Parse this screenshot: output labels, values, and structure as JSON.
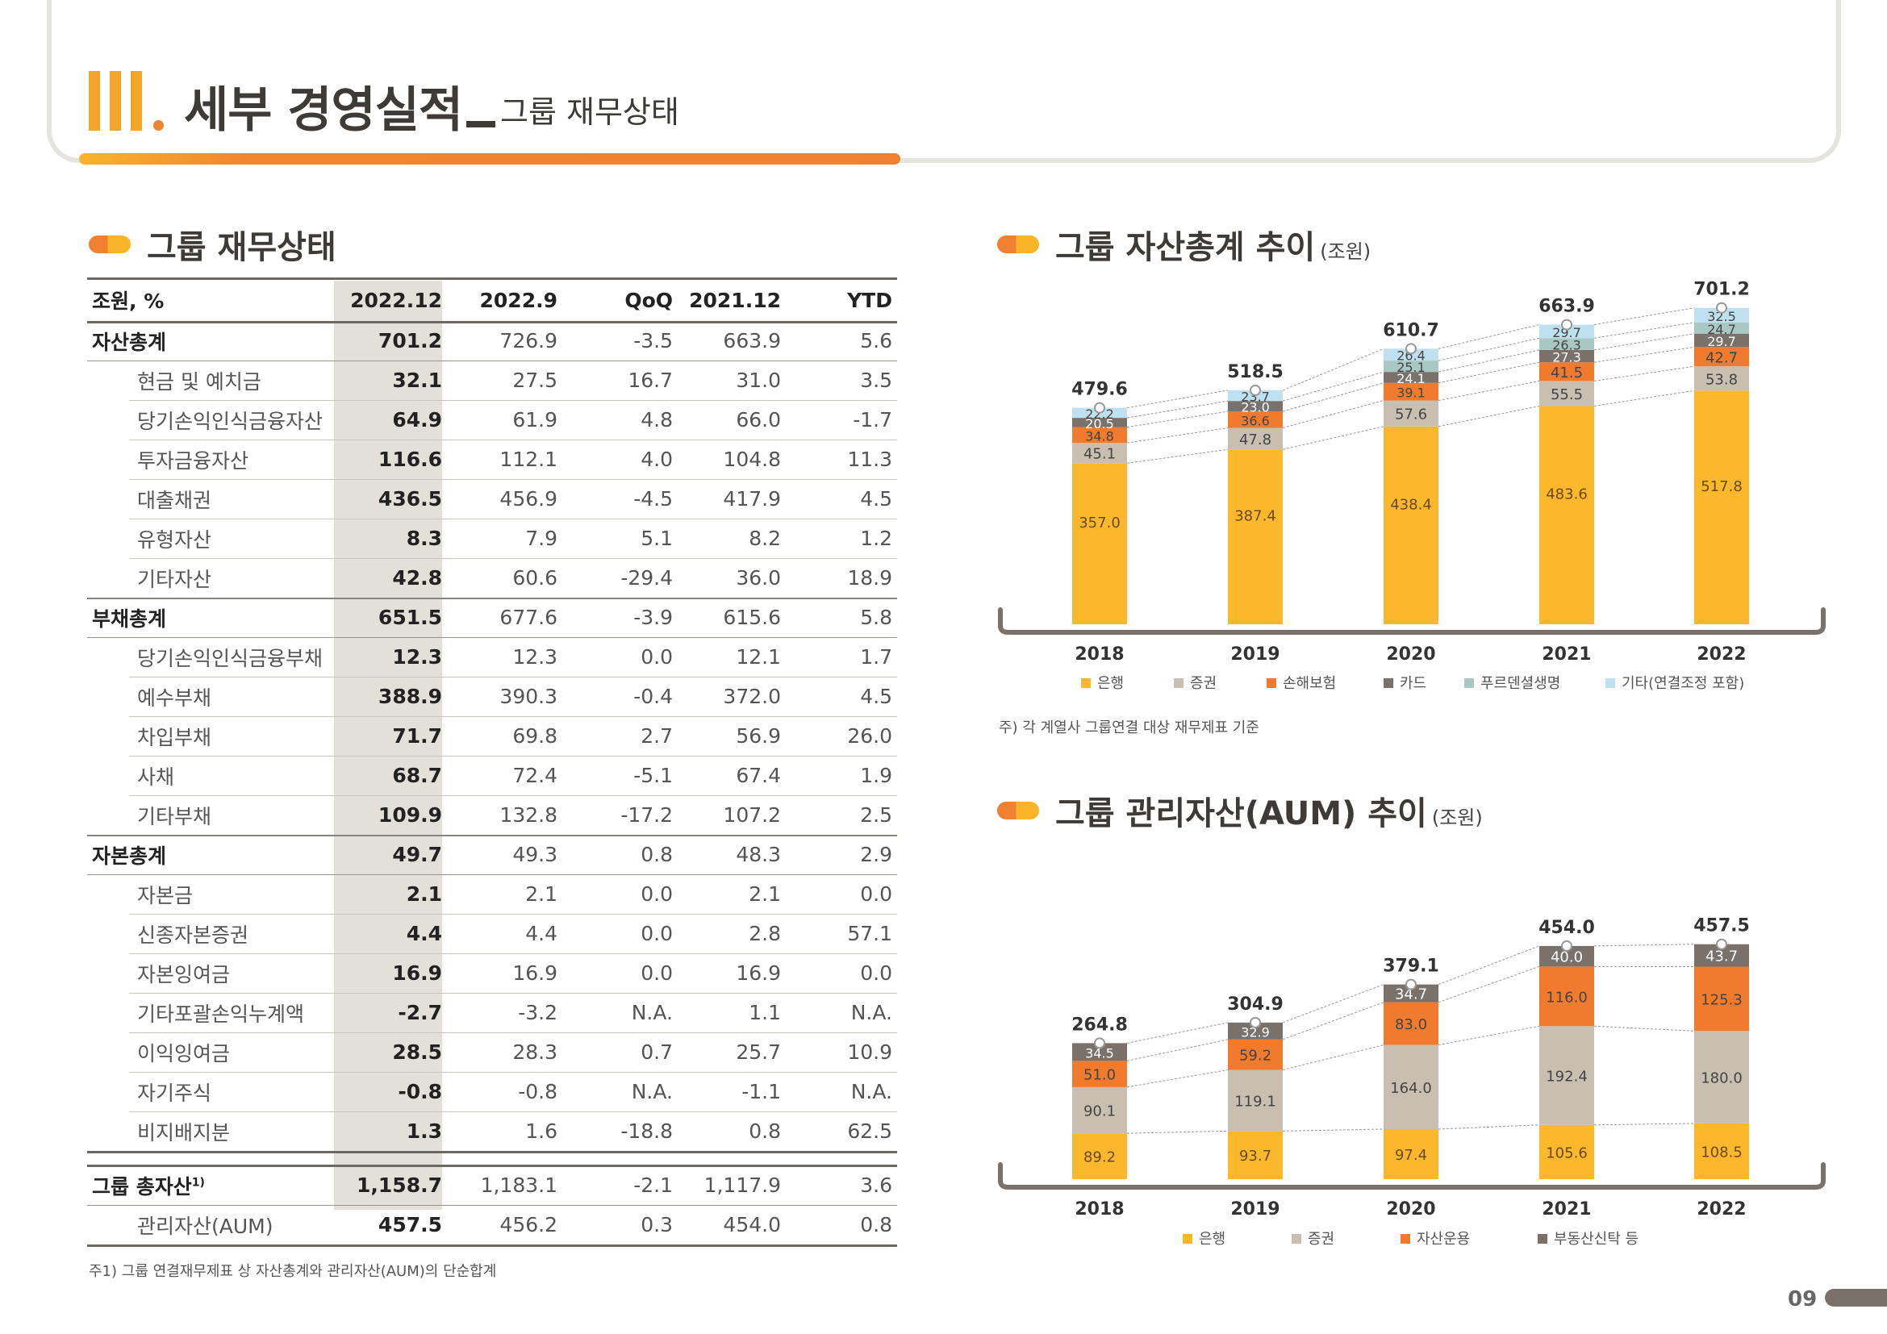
{
  "header": {
    "roman": "III",
    "title": "세부 경영실적",
    "subtitle": "그룹 재무상태"
  },
  "table_section": {
    "title": "그룹 재무상태",
    "columns": [
      "조원, %",
      "2022.12",
      "2022.9",
      "QoQ",
      "2021.12",
      "YTD"
    ],
    "rows": [
      {
        "label": "자산총계",
        "type": "major",
        "v": [
          "701.2",
          "726.9",
          "-3.5",
          "663.9",
          "5.6"
        ]
      },
      {
        "label": "현금 및 예치금",
        "type": "sub",
        "v": [
          "32.1",
          "27.5",
          "16.7",
          "31.0",
          "3.5"
        ]
      },
      {
        "label": "당기손익인식금융자산",
        "type": "sub",
        "v": [
          "64.9",
          "61.9",
          "4.8",
          "66.0",
          "-1.7"
        ]
      },
      {
        "label": "투자금융자산",
        "type": "sub",
        "v": [
          "116.6",
          "112.1",
          "4.0",
          "104.8",
          "11.3"
        ]
      },
      {
        "label": "대출채권",
        "type": "sub",
        "v": [
          "436.5",
          "456.9",
          "-4.5",
          "417.9",
          "4.5"
        ]
      },
      {
        "label": "유형자산",
        "type": "sub",
        "v": [
          "8.3",
          "7.9",
          "5.1",
          "8.2",
          "1.2"
        ]
      },
      {
        "label": "기타자산",
        "type": "sub",
        "v": [
          "42.8",
          "60.6",
          "-29.4",
          "36.0",
          "18.9"
        ]
      },
      {
        "label": "부채총계",
        "type": "major",
        "v": [
          "651.5",
          "677.6",
          "-3.9",
          "615.6",
          "5.8"
        ]
      },
      {
        "label": "당기손익인식금융부채",
        "type": "sub",
        "v": [
          "12.3",
          "12.3",
          "0.0",
          "12.1",
          "1.7"
        ]
      },
      {
        "label": "예수부채",
        "type": "sub",
        "v": [
          "388.9",
          "390.3",
          "-0.4",
          "372.0",
          "4.5"
        ]
      },
      {
        "label": "차입부채",
        "type": "sub",
        "v": [
          "71.7",
          "69.8",
          "2.7",
          "56.9",
          "26.0"
        ]
      },
      {
        "label": "사채",
        "type": "sub",
        "v": [
          "68.7",
          "72.4",
          "-5.1",
          "67.4",
          "1.9"
        ]
      },
      {
        "label": "기타부채",
        "type": "sub",
        "v": [
          "109.9",
          "132.8",
          "-17.2",
          "107.2",
          "2.5"
        ]
      },
      {
        "label": "자본총계",
        "type": "major",
        "v": [
          "49.7",
          "49.3",
          "0.8",
          "48.3",
          "2.9"
        ]
      },
      {
        "label": "자본금",
        "type": "sub",
        "v": [
          "2.1",
          "2.1",
          "0.0",
          "2.1",
          "0.0"
        ]
      },
      {
        "label": "신종자본증권",
        "type": "sub",
        "v": [
          "4.4",
          "4.4",
          "0.0",
          "2.8",
          "57.1"
        ]
      },
      {
        "label": "자본잉여금",
        "type": "sub",
        "v": [
          "16.9",
          "16.9",
          "0.0",
          "16.9",
          "0.0"
        ]
      },
      {
        "label": "기타포괄손익누계액",
        "type": "sub",
        "v": [
          "-2.7",
          "-3.2",
          "N.A.",
          "1.1",
          "N.A."
        ]
      },
      {
        "label": "이익잉여금",
        "type": "sub",
        "v": [
          "28.5",
          "28.3",
          "0.7",
          "25.7",
          "10.9"
        ]
      },
      {
        "label": "자기주식",
        "type": "sub",
        "v": [
          "-0.8",
          "-0.8",
          "N.A.",
          "-1.1",
          "N.A."
        ]
      },
      {
        "label": "비지배지분",
        "type": "sub",
        "v": [
          "1.3",
          "1.6",
          "-18.8",
          "0.8",
          "62.5"
        ]
      }
    ],
    "totals": [
      {
        "label": "그룹 총자산",
        "sup": "1)",
        "type": "major",
        "v": [
          "1,158.7",
          "1,183.1",
          "-2.1",
          "1,117.9",
          "3.6"
        ]
      },
      {
        "label": "관리자산(AUM)",
        "type": "sub",
        "v": [
          "457.5",
          "456.2",
          "0.3",
          "454.0",
          "0.8"
        ]
      }
    ],
    "footnote": "주1) 그룹 연결재무제표 상 자산총계와 관리자산(AUM)의 단순합계"
  },
  "asset_section": {
    "title": "그룹 자산총계 추이",
    "unit": "(조원)",
    "note": "주) 각 계열사 그룹연결 대상 재무제표 기준"
  },
  "aum_section": {
    "title": "그룹 관리자산(AUM) 추이",
    "unit": "(조원)"
  },
  "chart_data": [
    {
      "type": "bar",
      "stacked": true,
      "categories": [
        "2018",
        "2019",
        "2020",
        "2021",
        "2022"
      ],
      "totals": [
        "479.6",
        "518.5",
        "610.7",
        "663.9",
        "701.2"
      ],
      "series": [
        {
          "name": "은행",
          "color": "#fbb82c",
          "values": [
            357.0,
            387.4,
            438.4,
            483.6,
            517.8
          ],
          "labels": [
            "357.0",
            "387.4",
            "438.4",
            "483.6",
            "517.8"
          ]
        },
        {
          "name": "증권",
          "color": "#c9bfb1",
          "values": [
            45.1,
            47.8,
            57.6,
            55.5,
            53.8
          ],
          "labels": [
            "45.1",
            "47.8",
            "57.6",
            "55.5",
            "53.8"
          ]
        },
        {
          "name": "손해보험",
          "color": "#f07b2f",
          "values": [
            34.8,
            36.6,
            39.1,
            41.5,
            42.7
          ],
          "labels": [
            "34.8",
            "36.6",
            "39.1",
            "41.5",
            "42.7"
          ]
        },
        {
          "name": "카드",
          "color": "#7a716b",
          "values": [
            20.5,
            23.0,
            24.1,
            27.3,
            29.7
          ],
          "labels": [
            "20.5",
            "23.0",
            "24.1",
            "27.3",
            "29.7"
          ]
        },
        {
          "name": "푸르덴셜생명",
          "color": "#a9c8c3",
          "values": [
            0,
            0,
            25.1,
            26.3,
            24.7
          ],
          "labels": [
            "",
            "",
            "25.1",
            "26.3",
            "24.7"
          ]
        },
        {
          "name": "기타(연결조정 포함)",
          "color": "#bfe0ee",
          "values": [
            22.2,
            23.7,
            26.4,
            29.7,
            32.5
          ],
          "labels": [
            "22.2",
            "23.7",
            "26.4",
            "29.7",
            "32.5"
          ]
        }
      ],
      "ylim": [
        0,
        740
      ]
    },
    {
      "type": "bar",
      "stacked": true,
      "categories": [
        "2018",
        "2019",
        "2020",
        "2021",
        "2022"
      ],
      "totals": [
        "264.8",
        "304.9",
        "379.1",
        "454.0",
        "457.5"
      ],
      "series": [
        {
          "name": "은행",
          "color": "#fbb82c",
          "values": [
            89.2,
            93.7,
            97.4,
            105.6,
            108.5
          ],
          "labels": [
            "89.2",
            "93.7",
            "97.4",
            "105.6",
            "108.5"
          ]
        },
        {
          "name": "증권",
          "color": "#c9bfb1",
          "values": [
            90.1,
            119.1,
            164.0,
            192.4,
            180.0
          ],
          "labels": [
            "90.1",
            "119.1",
            "164.0",
            "192.4",
            "180.0"
          ]
        },
        {
          "name": "자산운용",
          "color": "#f07b2f",
          "values": [
            51.0,
            59.2,
            83.0,
            116.0,
            125.3
          ],
          "labels": [
            "51.0",
            "59.2",
            "83.0",
            "116.0",
            "125.3"
          ]
        },
        {
          "name": "부동산신탁 등",
          "color": "#7a716b",
          "values": [
            34.5,
            32.9,
            34.7,
            40.0,
            43.7
          ],
          "labels": [
            "34.5",
            "32.9",
            "34.7",
            "40.0",
            "43.7"
          ]
        }
      ],
      "ylim": [
        0,
        490
      ]
    }
  ],
  "page_number": "09"
}
